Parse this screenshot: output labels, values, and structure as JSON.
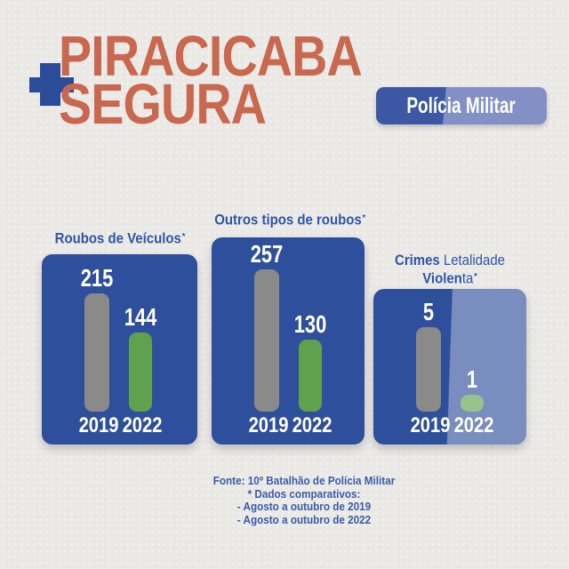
{
  "header": {
    "title_line1": "PIRACICABA",
    "title_line2": "SEGURA",
    "badge_label": "Polícia Militar"
  },
  "colors": {
    "background": "#EAE9E6",
    "accent_orange": "#C9684F",
    "plus_blue": "#2B4D99",
    "panel_blue": "#2E4F9B",
    "panel_light_blue": "#8290C5",
    "title_blue": "#2F55A6",
    "footer_blue": "#3B5CA8",
    "bar_gray": "#8A8A88",
    "bar_green": "#5FA14D"
  },
  "chart_data": [
    {
      "type": "bar",
      "title": "Roubos de Veículos",
      "note_marker": "*",
      "categories": [
        "2019",
        "2022"
      ],
      "values": [
        215,
        144
      ],
      "series_colors": [
        "#8A8A88",
        "#5FA14D"
      ],
      "ylim": [
        0,
        257
      ],
      "grid": false,
      "legend": "none",
      "value_labels": "above bars, white"
    },
    {
      "type": "bar",
      "title": "Outros tipos de roubos",
      "note_marker": "*",
      "categories": [
        "2019",
        "2022"
      ],
      "values": [
        257,
        130
      ],
      "series_colors": [
        "#8A8A88",
        "#5FA14D"
      ],
      "ylim": [
        0,
        257
      ],
      "grid": false,
      "legend": "none",
      "value_labels": "above bars, white"
    },
    {
      "type": "bar",
      "title": "Crimes Letalidade Violenta",
      "title_l1_strong": "Crimes",
      "title_l1_light": " Letalidade",
      "title_l2_strong": "Violen",
      "title_l2_light": "ta",
      "note_marker": "*",
      "categories": [
        "2019",
        "2022"
      ],
      "values": [
        5,
        1
      ],
      "series_colors": [
        "#8A8A88",
        "#5FA14D"
      ],
      "ylim": [
        0,
        5
      ],
      "grid": false,
      "legend": "none",
      "value_labels": "above bars, white"
    }
  ],
  "footer": {
    "lines": [
      "Fonte: 10º Batalhão de Polícia Militar",
      "* Dados comparativos:",
      "- Agosto a outubro de 2019",
      "- Agosto a outubro de 2022"
    ]
  }
}
